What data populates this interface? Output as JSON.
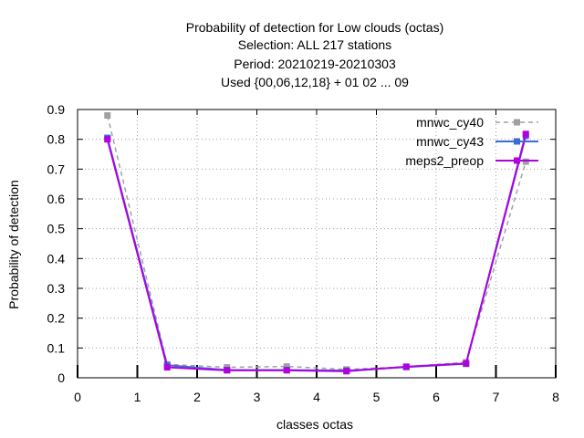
{
  "chart_data": {
    "type": "line",
    "title_lines": [
      "Probability of detection  for Low clouds (octas)",
      "Selection: ALL    217 stations",
      "Period: 20210219-20210303",
      "Used {00,06,12,18} + 01 02 ... 09"
    ],
    "xlabel": "classes octas",
    "ylabel": "Probability of detection",
    "xlim": [
      0,
      8
    ],
    "ylim": [
      0,
      0.9
    ],
    "xticks": [
      "0",
      "1",
      "2",
      "3",
      "4",
      "5",
      "6",
      "7",
      "8"
    ],
    "yticks": [
      "0",
      "0.1",
      "0.2",
      "0.3",
      "0.4",
      "0.5",
      "0.6",
      "0.7",
      "0.8",
      "0.9"
    ],
    "grid": true,
    "legend_position": "top-right",
    "series": [
      {
        "name": "mnwc_cy40",
        "color": "#a0a0a0",
        "style": "dashed",
        "x": [
          0.5,
          1.5,
          2.5,
          3.5,
          4.5,
          5.5,
          6.5,
          7.5
        ],
        "y": [
          0.88,
          0.045,
          0.035,
          0.038,
          0.028,
          0.037,
          0.052,
          0.725
        ]
      },
      {
        "name": "mnwc_cy43",
        "color": "#3b6bd6",
        "style": "solid",
        "x": [
          0.5,
          1.5,
          2.5,
          3.5,
          4.5,
          5.5,
          6.5,
          7.5
        ],
        "y": [
          0.805,
          0.042,
          0.026,
          0.026,
          0.024,
          0.036,
          0.047,
          0.812
        ]
      },
      {
        "name": "meps2_preop",
        "color": "#b000e0",
        "style": "solid",
        "x": [
          0.5,
          1.5,
          2.5,
          3.5,
          4.5,
          5.5,
          6.5,
          7.5
        ],
        "y": [
          0.8,
          0.035,
          0.025,
          0.025,
          0.022,
          0.037,
          0.048,
          0.818
        ]
      }
    ]
  }
}
